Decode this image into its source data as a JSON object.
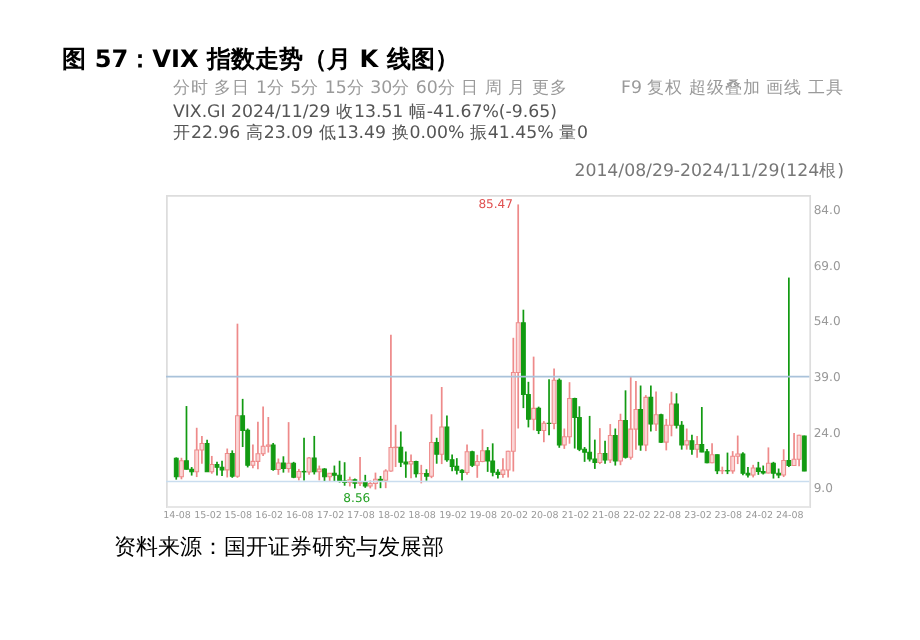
{
  "chart_data": {
    "type": "candlestick",
    "title": "图 57：VIX 指数走势（月 K 线图）",
    "x": [
      "2014-08",
      "2014-09",
      "2014-10",
      "2014-11",
      "2014-12",
      "2015-01",
      "2015-02",
      "2015-03",
      "2015-04",
      "2015-05",
      "2015-06",
      "2015-07",
      "2015-08",
      "2015-09",
      "2015-10",
      "2015-11",
      "2015-12",
      "2016-01",
      "2016-02",
      "2016-03",
      "2016-04",
      "2016-05",
      "2016-06",
      "2016-07",
      "2016-08",
      "2016-09",
      "2016-10",
      "2016-11",
      "2016-12",
      "2017-01",
      "2017-02",
      "2017-03",
      "2017-04",
      "2017-05",
      "2017-06",
      "2017-07",
      "2017-08",
      "2017-09",
      "2017-10",
      "2017-11",
      "2017-12",
      "2018-01",
      "2018-02",
      "2018-03",
      "2018-04",
      "2018-05",
      "2018-06",
      "2018-07",
      "2018-08",
      "2018-09",
      "2018-10",
      "2018-11",
      "2018-12",
      "2019-01",
      "2019-02",
      "2019-03",
      "2019-04",
      "2019-05",
      "2019-06",
      "2019-07",
      "2019-08",
      "2019-09",
      "2019-10",
      "2019-11",
      "2019-12",
      "2020-01",
      "2020-02",
      "2020-03",
      "2020-04",
      "2020-05",
      "2020-06",
      "2020-07",
      "2020-08",
      "2020-09",
      "2020-10",
      "2020-11",
      "2020-12",
      "2021-01",
      "2021-02",
      "2021-03",
      "2021-04",
      "2021-05",
      "2021-06",
      "2021-07",
      "2021-08",
      "2021-09",
      "2021-10",
      "2021-11",
      "2021-12",
      "2022-01",
      "2022-02",
      "2022-03",
      "2022-04",
      "2022-05",
      "2022-06",
      "2022-07",
      "2022-08",
      "2022-09",
      "2022-10",
      "2022-11",
      "2022-12",
      "2023-01",
      "2023-02",
      "2023-03",
      "2023-04",
      "2023-05",
      "2023-06",
      "2023-07",
      "2023-08",
      "2023-09",
      "2023-10",
      "2023-11",
      "2023-12",
      "2024-01",
      "2024-02",
      "2024-03",
      "2024-04",
      "2024-05",
      "2024-06",
      "2024-07",
      "2024-08",
      "2024-09",
      "2024-10",
      "2024-11"
    ],
    "ohlc": [
      [
        16.95,
        17.2,
        11.2,
        11.98
      ],
      [
        11.98,
        17.1,
        11.3,
        16.31
      ],
      [
        16.31,
        31.06,
        13.9,
        14.03
      ],
      [
        14.03,
        14.6,
        12.3,
        13.33
      ],
      [
        13.33,
        25.2,
        11.9,
        19.2
      ],
      [
        19.2,
        23.0,
        15.5,
        20.97
      ],
      [
        20.97,
        22.0,
        13.3,
        13.34
      ],
      [
        13.34,
        17.6,
        12.8,
        15.29
      ],
      [
        15.29,
        16.0,
        12.3,
        14.55
      ],
      [
        14.55,
        16.3,
        12.2,
        13.84
      ],
      [
        13.84,
        19.6,
        11.8,
        18.23
      ],
      [
        18.23,
        19.1,
        11.7,
        12.12
      ],
      [
        12.12,
        53.29,
        11.7,
        28.43
      ],
      [
        28.43,
        33.0,
        20.0,
        24.5
      ],
      [
        24.5,
        25.0,
        14.5,
        15.07
      ],
      [
        15.07,
        20.7,
        14.3,
        16.13
      ],
      [
        16.13,
        26.8,
        14.0,
        18.21
      ],
      [
        18.21,
        30.95,
        17.6,
        20.2
      ],
      [
        20.2,
        28.1,
        18.5,
        20.55
      ],
      [
        20.55,
        21.1,
        13.6,
        13.95
      ],
      [
        13.95,
        16.9,
        12.5,
        15.7
      ],
      [
        15.7,
        17.5,
        13.1,
        14.19
      ],
      [
        14.19,
        26.72,
        13.1,
        15.63
      ],
      [
        15.63,
        16.0,
        11.6,
        11.87
      ],
      [
        11.87,
        14.1,
        11.0,
        13.42
      ],
      [
        13.42,
        22.5,
        11.0,
        13.29
      ],
      [
        13.29,
        17.3,
        12.5,
        17.06
      ],
      [
        17.06,
        23.0,
        12.6,
        13.33
      ],
      [
        13.33,
        15.0,
        11.0,
        14.04
      ],
      [
        14.04,
        14.3,
        10.6,
        11.99
      ],
      [
        11.99,
        13.0,
        10.6,
        12.92
      ],
      [
        12.92,
        15.0,
        10.6,
        12.37
      ],
      [
        12.37,
        16.3,
        10.4,
        10.82
      ],
      [
        10.82,
        15.9,
        9.56,
        10.41
      ],
      [
        10.41,
        12.0,
        9.37,
        11.18
      ],
      [
        11.18,
        11.5,
        8.84,
        10.26
      ],
      [
        10.26,
        17.3,
        9.5,
        10.59
      ],
      [
        10.59,
        12.5,
        9.0,
        9.51
      ],
      [
        9.51,
        11.0,
        8.85,
        10.18
      ],
      [
        10.18,
        13.1,
        8.56,
        11.28
      ],
      [
        11.28,
        12.2,
        8.9,
        11.04
      ],
      [
        11.04,
        14.0,
        8.9,
        13.54
      ],
      [
        13.54,
        50.3,
        13.3,
        19.85
      ],
      [
        19.85,
        26.0,
        14.6,
        19.97
      ],
      [
        19.97,
        24.2,
        14.6,
        15.93
      ],
      [
        15.93,
        18.8,
        11.7,
        15.43
      ],
      [
        15.43,
        18.0,
        11.6,
        16.09
      ],
      [
        16.09,
        16.3,
        11.8,
        12.83
      ],
      [
        12.83,
        15.2,
        10.2,
        12.86
      ],
      [
        12.86,
        14.0,
        10.9,
        12.12
      ],
      [
        12.12,
        28.84,
        11.6,
        21.23
      ],
      [
        21.23,
        22.5,
        15.5,
        18.07
      ],
      [
        18.07,
        36.2,
        15.4,
        25.42
      ],
      [
        25.42,
        28.5,
        16.0,
        16.57
      ],
      [
        16.57,
        18.0,
        13.5,
        14.78
      ],
      [
        14.78,
        17.0,
        12.6,
        13.71
      ],
      [
        13.71,
        14.0,
        11.0,
        13.12
      ],
      [
        13.12,
        20.7,
        12.5,
        18.71
      ],
      [
        18.71,
        19.0,
        14.6,
        15.08
      ],
      [
        15.08,
        17.9,
        11.7,
        16.12
      ],
      [
        16.12,
        24.8,
        15.9,
        18.98
      ],
      [
        18.98,
        20.0,
        13.3,
        16.24
      ],
      [
        16.24,
        21.0,
        12.1,
        13.22
      ],
      [
        13.22,
        14.0,
        11.5,
        12.62
      ],
      [
        12.62,
        17.0,
        11.7,
        13.78
      ],
      [
        13.78,
        19.0,
        11.75,
        18.84
      ],
      [
        18.84,
        49.48,
        13.4,
        40.11
      ],
      [
        40.11,
        85.47,
        25.0,
        53.54
      ],
      [
        53.54,
        57.06,
        30.5,
        34.15
      ],
      [
        34.15,
        37.6,
        25.3,
        27.51
      ],
      [
        27.51,
        44.4,
        24.5,
        30.43
      ],
      [
        30.43,
        30.9,
        23.5,
        24.46
      ],
      [
        24.46,
        27.0,
        21.3,
        26.41
      ],
      [
        26.41,
        38.3,
        23.2,
        26.37
      ],
      [
        26.37,
        41.2,
        24.8,
        38.02
      ],
      [
        38.02,
        38.5,
        19.8,
        20.57
      ],
      [
        20.57,
        25.0,
        19.5,
        22.75
      ],
      [
        22.75,
        37.5,
        20.9,
        33.09
      ],
      [
        33.09,
        33.3,
        19.6,
        27.95
      ],
      [
        27.95,
        31.0,
        18.9,
        19.4
      ],
      [
        19.4,
        20.0,
        16.0,
        18.61
      ],
      [
        18.61,
        28.4,
        16.1,
        16.76
      ],
      [
        16.76,
        22.0,
        14.1,
        15.83
      ],
      [
        15.83,
        25.1,
        15.4,
        18.24
      ],
      [
        18.24,
        21.7,
        15.5,
        16.48
      ],
      [
        16.48,
        26.2,
        15.7,
        23.14
      ],
      [
        23.14,
        25.0,
        15.0,
        16.26
      ],
      [
        16.26,
        28.99,
        15.1,
        27.19
      ],
      [
        27.19,
        35.3,
        16.9,
        17.22
      ],
      [
        17.22,
        38.9,
        16.6,
        24.83
      ],
      [
        24.83,
        37.8,
        19.3,
        30.15
      ],
      [
        30.15,
        36.6,
        19.0,
        20.56
      ],
      [
        20.56,
        34.0,
        18.9,
        33.4
      ],
      [
        33.4,
        36.6,
        24.2,
        26.19
      ],
      [
        26.19,
        35.0,
        24.3,
        28.71
      ],
      [
        28.71,
        29.0,
        21.1,
        21.33
      ],
      [
        21.33,
        27.6,
        19.1,
        25.87
      ],
      [
        25.87,
        34.9,
        22.9,
        31.62
      ],
      [
        31.62,
        34.5,
        25.0,
        25.88
      ],
      [
        25.88,
        27.0,
        19.3,
        20.58
      ],
      [
        20.58,
        25.0,
        19.3,
        21.67
      ],
      [
        21.67,
        23.3,
        17.9,
        19.4
      ],
      [
        19.4,
        23.0,
        17.1,
        20.7
      ],
      [
        20.7,
        30.8,
        18.6,
        18.7
      ],
      [
        18.7,
        19.5,
        15.6,
        15.78
      ],
      [
        15.78,
        21.0,
        15.6,
        17.94
      ],
      [
        17.94,
        18.0,
        12.7,
        13.59
      ],
      [
        13.59,
        14.7,
        12.7,
        13.63
      ],
      [
        13.63,
        18.5,
        12.7,
        13.57
      ],
      [
        13.57,
        18.9,
        12.8,
        17.52
      ],
      [
        17.52,
        23.1,
        15.4,
        18.14
      ],
      [
        18.14,
        18.6,
        12.4,
        12.92
      ],
      [
        12.92,
        14.6,
        11.8,
        12.45
      ],
      [
        12.45,
        15.2,
        11.8,
        14.35
      ],
      [
        14.35,
        16.0,
        12.5,
        13.4
      ],
      [
        13.4,
        15.0,
        12.6,
        13.01
      ],
      [
        13.01,
        19.9,
        12.9,
        15.65
      ],
      [
        15.65,
        16.0,
        11.5,
        12.92
      ],
      [
        12.92,
        14.2,
        11.6,
        12.44
      ],
      [
        12.44,
        19.4,
        11.9,
        16.36
      ],
      [
        16.36,
        65.73,
        14.6,
        15.0
      ],
      [
        15.0,
        23.8,
        14.9,
        16.73
      ],
      [
        16.73,
        23.3,
        14.8,
        23.16
      ],
      [
        22.96,
        23.09,
        13.49,
        13.51
      ]
    ],
    "xlim": [
      "2014-06",
      "2024-12"
    ],
    "xticks": [
      {
        "value": "2014-08",
        "label": "14-08"
      },
      {
        "value": "2015-02",
        "label": "15-02"
      },
      {
        "value": "2015-08",
        "label": "15-08"
      },
      {
        "value": "2016-02",
        "label": "16-02"
      },
      {
        "value": "2016-08",
        "label": "16-08"
      },
      {
        "value": "2017-02",
        "label": "17-02"
      },
      {
        "value": "2017-08",
        "label": "17-08"
      },
      {
        "value": "2018-02",
        "label": "18-02"
      },
      {
        "value": "2018-08",
        "label": "18-08"
      },
      {
        "value": "2019-02",
        "label": "19-02"
      },
      {
        "value": "2019-08",
        "label": "19-08"
      },
      {
        "value": "2020-02",
        "label": "20-02"
      },
      {
        "value": "2020-08",
        "label": "20-08"
      },
      {
        "value": "2021-02",
        "label": "21-02"
      },
      {
        "value": "2021-08",
        "label": "21-08"
      },
      {
        "value": "2022-02",
        "label": "22-02"
      },
      {
        "value": "2022-08",
        "label": "22-08"
      },
      {
        "value": "2023-02",
        "label": "23-02"
      },
      {
        "value": "2023-08",
        "label": "23-08"
      },
      {
        "value": "2024-02",
        "label": "24-02"
      },
      {
        "value": "2024-08",
        "label": "24-08"
      }
    ],
    "ylim": [
      4,
      88
    ],
    "yticks": [
      {
        "value": 9,
        "label": "9.0"
      },
      {
        "value": 24,
        "label": "24.0"
      },
      {
        "value": 39,
        "label": "39.0"
      },
      {
        "value": 54,
        "label": "54.0"
      },
      {
        "value": 69,
        "label": "69.0"
      },
      {
        "value": 84,
        "label": "84.0"
      }
    ],
    "ref_lines": [
      {
        "axis": "y",
        "value": 39,
        "color": "#a9c2da"
      },
      {
        "axis": "y",
        "value": 10.7,
        "color": "#c9ddef"
      }
    ],
    "annotations": [
      "分时 多日 1分 5分 15分 30分 60分 日 周 月 更多",
      "F9 复权 超级叠加 画线 工具",
      "VIX.GI 2024/11/29 收13.51 幅-41.67%(-9.65) 开22.96 高23.09 低13.49 换0.00% 振41.45% 量0",
      "2014/08/29-2024/11/29(124根)",
      {
        "text": "85.47",
        "x": "2020-03",
        "y": 85.47
      },
      {
        "text": "8.56",
        "x": "2017-11",
        "y": 8.56
      },
      "资料来源：国开证券研究与发展部"
    ]
  }
}
